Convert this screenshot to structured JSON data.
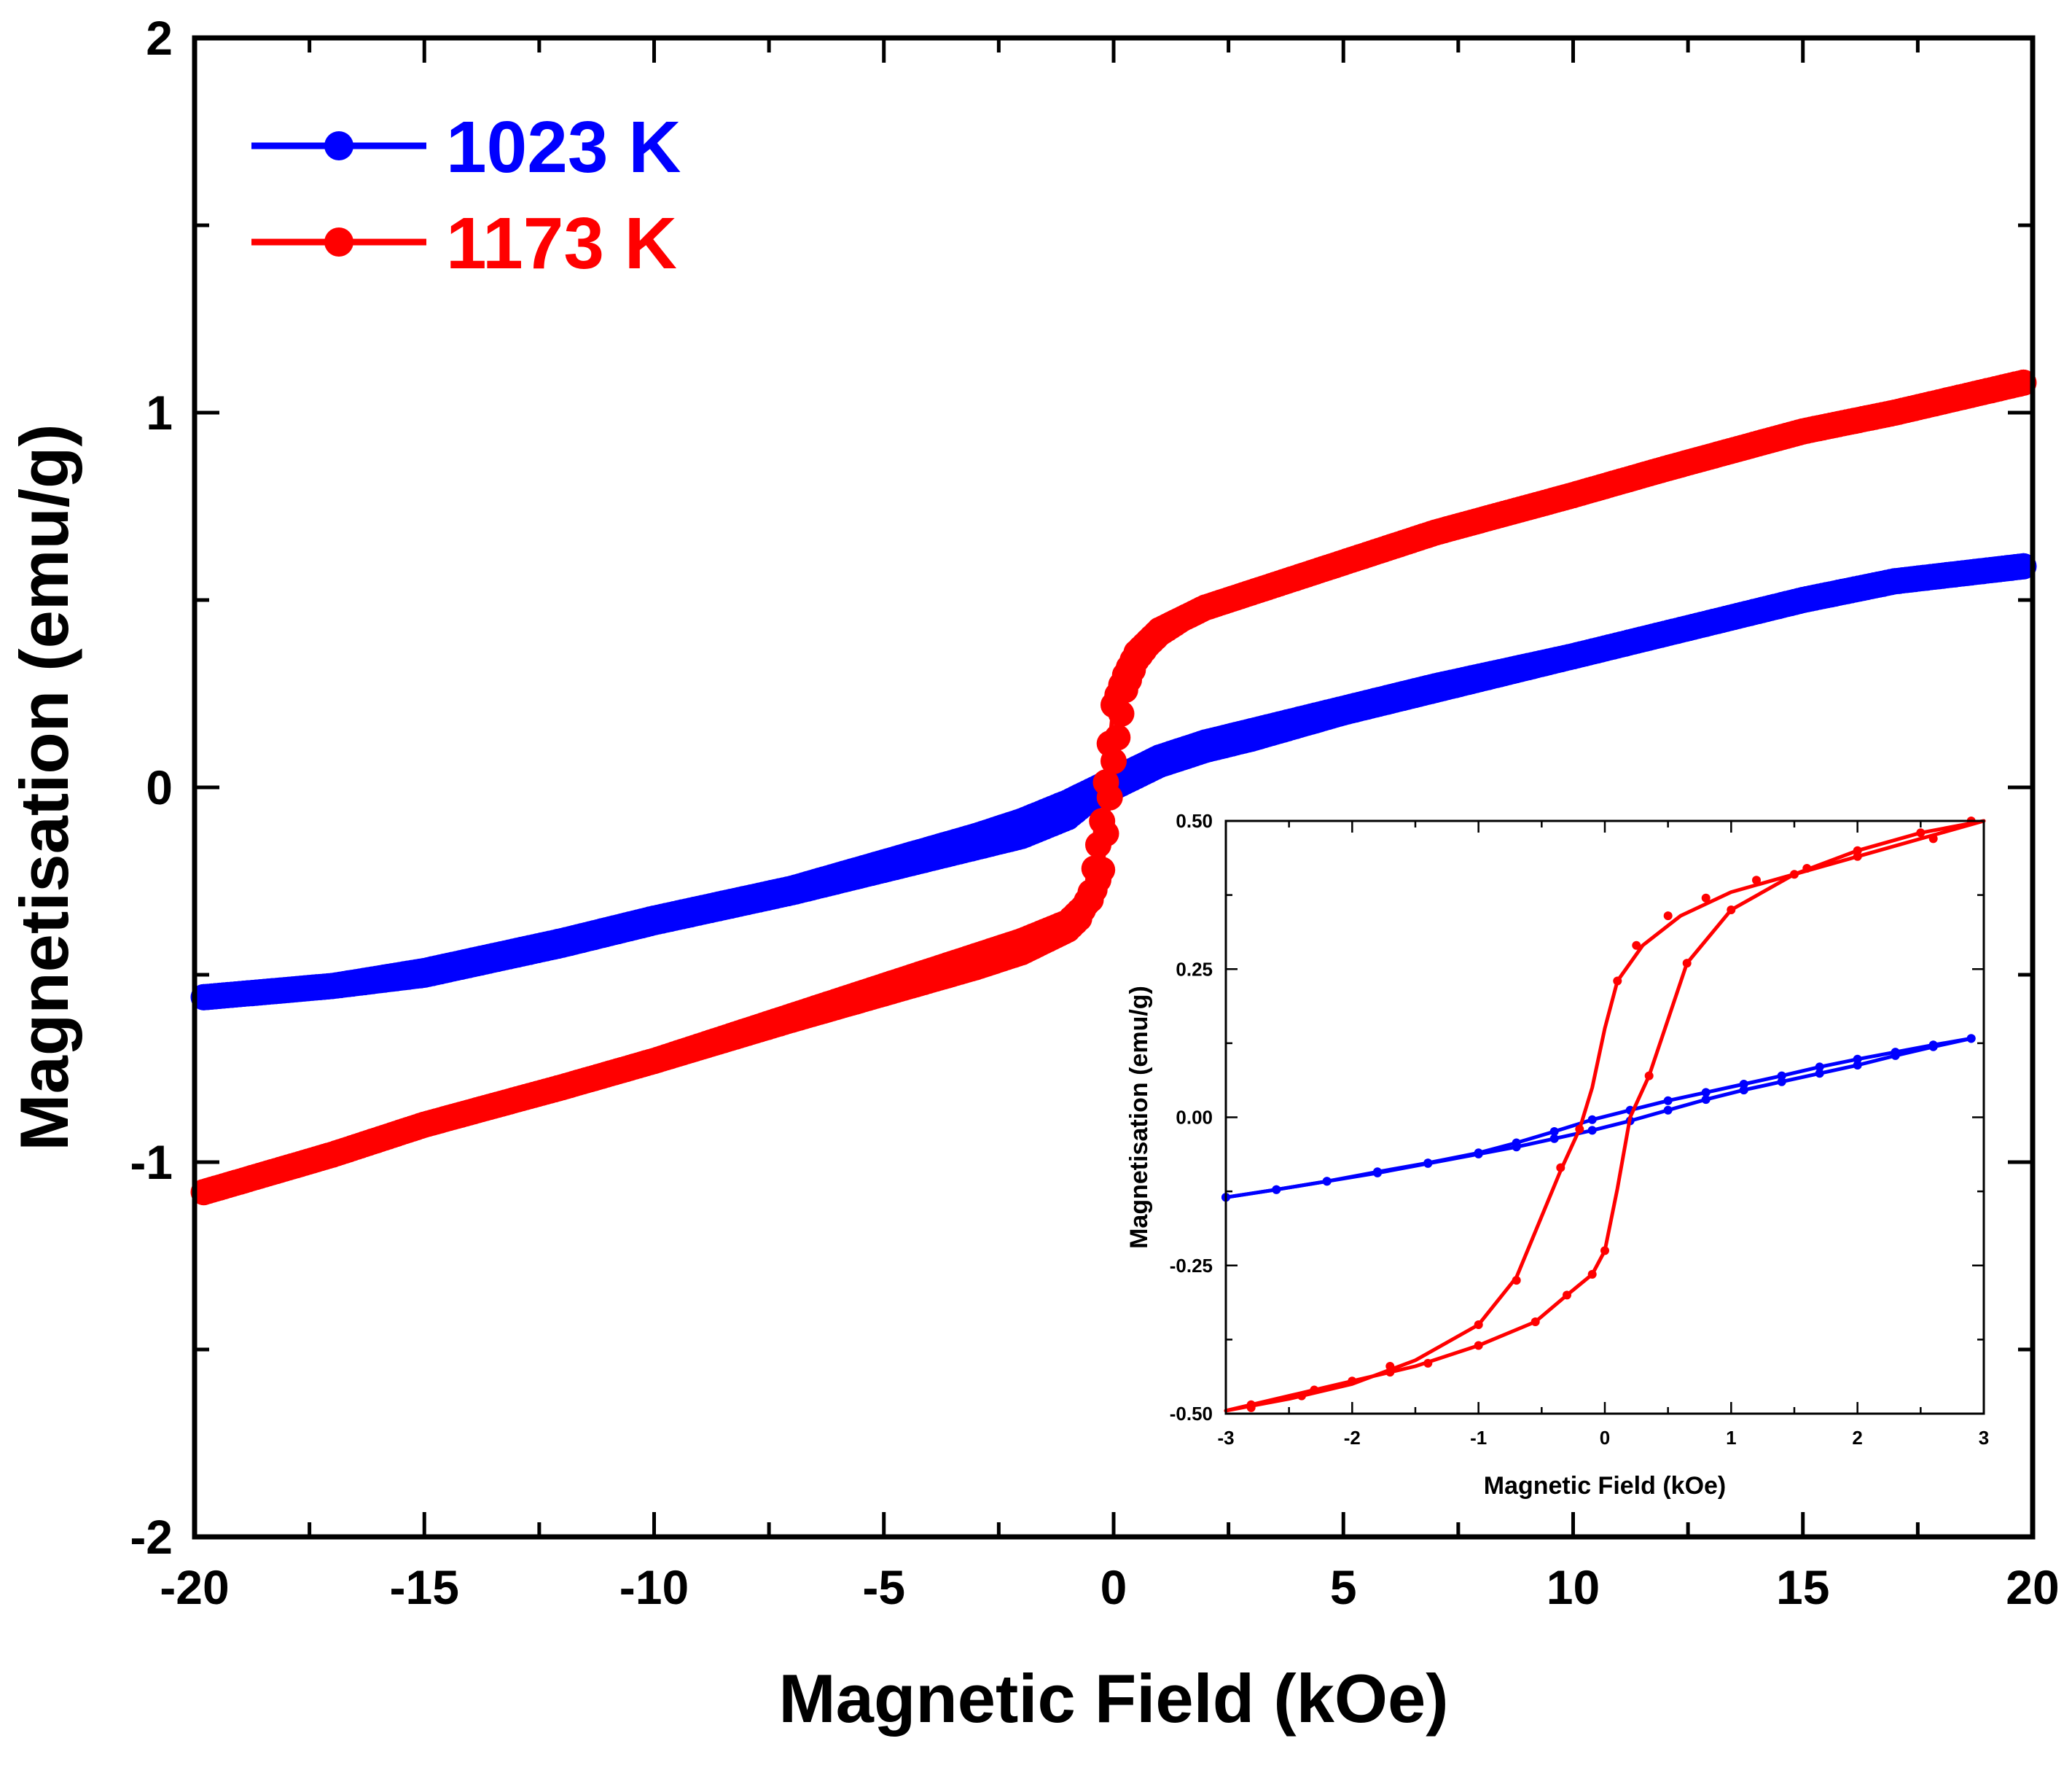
{
  "chart_data": [
    {
      "type": "line",
      "title": "",
      "xlabel": "Magnetic Field (kOe)",
      "ylabel": "Magnetisation (emu/g)",
      "xlim": [
        -20,
        20
      ],
      "ylim": [
        -2,
        2
      ],
      "x_ticks": [
        -20,
        -15,
        -10,
        -5,
        0,
        5,
        10,
        15,
        20
      ],
      "x_tick_labels": [
        "-20",
        "-15",
        "-10",
        "-5",
        "0",
        "5",
        "10",
        "15",
        "20"
      ],
      "y_ticks": [
        -2,
        -1,
        0,
        1,
        2
      ],
      "y_tick_labels": [
        "-2",
        "-1",
        "0",
        "1",
        "2"
      ],
      "grid": false,
      "legend_position": "top-left",
      "series": [
        {
          "name": "1023 K",
          "color": "#0000ff",
          "marker": "circle",
          "branches": [
            {
              "x": [
                -19.8,
                -17,
                -15,
                -12,
                -10,
                -7,
                -5,
                -3,
                -2,
                -1,
                -0.5,
                0,
                0.5,
                1,
                2,
                3,
                5,
                7,
                10,
                12,
                15,
                17,
                19.8
              ],
              "y": [
                -0.56,
                -0.53,
                -0.5,
                -0.42,
                -0.36,
                -0.28,
                -0.22,
                -0.16,
                -0.13,
                -0.08,
                -0.03,
                0.0,
                0.03,
                0.06,
                0.1,
                0.13,
                0.2,
                0.26,
                0.35,
                0.41,
                0.5,
                0.55,
                0.59
              ]
            },
            {
              "x": [
                19.8,
                17,
                15,
                12,
                10,
                7,
                5,
                3,
                2,
                1,
                0.5,
                0,
                -0.5,
                -1,
                -2,
                -3,
                -5,
                -7,
                -10,
                -12,
                -15,
                -17,
                -19.8
              ],
              "y": [
                0.59,
                0.55,
                0.5,
                0.41,
                0.35,
                0.27,
                0.21,
                0.15,
                0.12,
                0.08,
                0.05,
                0.02,
                -0.01,
                -0.04,
                -0.09,
                -0.13,
                -0.2,
                -0.27,
                -0.35,
                -0.41,
                -0.49,
                -0.53,
                -0.56
              ]
            }
          ]
        },
        {
          "name": "1173 K",
          "color": "#ff0000",
          "marker": "circle",
          "branches": [
            {
              "x": [
                -19.8,
                -17,
                -15,
                -12,
                -10,
                -7,
                -5,
                -3,
                -2,
                -1,
                -0.75,
                -0.5,
                -0.25,
                0,
                0.25,
                0.5,
                0.75,
                1,
                1.5,
                2,
                3,
                5,
                7,
                10,
                12,
                15,
                17,
                19.8
              ],
              "y": [
                -1.08,
                -0.98,
                -0.9,
                -0.8,
                -0.73,
                -0.61,
                -0.53,
                -0.45,
                -0.41,
                -0.36,
                -0.33,
                -0.3,
                -0.22,
                0.07,
                0.26,
                0.34,
                0.38,
                0.41,
                0.45,
                0.48,
                0.52,
                0.6,
                0.68,
                0.78,
                0.85,
                0.95,
                1.0,
                1.08
              ]
            },
            {
              "x": [
                19.8,
                17,
                15,
                12,
                10,
                7,
                5,
                3,
                2,
                1,
                0.75,
                0.5,
                0.25,
                0,
                -0.25,
                -0.5,
                -0.75,
                -1,
                -1.5,
                -2,
                -3,
                -5,
                -7,
                -10,
                -12,
                -15,
                -17,
                -19.8
              ],
              "y": [
                1.08,
                1.0,
                0.95,
                0.85,
                0.78,
                0.68,
                0.6,
                0.52,
                0.48,
                0.42,
                0.39,
                0.36,
                0.3,
                0.22,
                -0.09,
                -0.28,
                -0.35,
                -0.38,
                -0.41,
                -0.44,
                -0.48,
                -0.55,
                -0.62,
                -0.73,
                -0.8,
                -0.9,
                -0.98,
                -1.08
              ]
            }
          ]
        }
      ]
    },
    {
      "type": "line",
      "title": "",
      "xlabel": "Magnetic Field (kOe)",
      "ylabel": "Magnetisation (emu/g)",
      "xlim": [
        -3,
        3
      ],
      "ylim": [
        -0.5,
        0.5
      ],
      "x_ticks": [
        -3,
        -2,
        -1,
        0,
        1,
        2,
        3
      ],
      "x_tick_labels": [
        "-3",
        "-2",
        "-1",
        "0",
        "1",
        "2",
        "3"
      ],
      "y_ticks": [
        -0.5,
        -0.25,
        0,
        0.25,
        0.5
      ],
      "y_tick_labels": [
        "-0.50",
        "-0.25",
        "0.00",
        "0.25",
        "0.50"
      ],
      "grid": false,
      "legend_position": "none",
      "series": [
        {
          "name": "1023 K",
          "color": "#0000ff",
          "marker": "circle",
          "branches": [
            {
              "x": [
                -3.0,
                -2.6,
                -2.2,
                -1.8,
                -1.4,
                -1.0,
                -0.7,
                -0.4,
                -0.1,
                0.2,
                0.5,
                0.8,
                1.1,
                1.4,
                1.7,
                2.0,
                2.3,
                2.6,
                2.9
              ],
              "y": [
                -0.135,
                -0.122,
                -0.108,
                -0.094,
                -0.078,
                -0.062,
                -0.05,
                -0.036,
                -0.022,
                -0.006,
                0.012,
                0.03,
                0.046,
                0.06,
                0.074,
                0.088,
                0.104,
                0.119,
                0.133
              ]
            },
            {
              "x": [
                2.9,
                2.6,
                2.3,
                2.0,
                1.7,
                1.4,
                1.1,
                0.8,
                0.5,
                0.2,
                -0.1,
                -0.4,
                -0.7,
                -1.0,
                -1.4,
                -1.8,
                -2.2,
                -2.6,
                -3.0
              ],
              "y": [
                0.133,
                0.122,
                0.11,
                0.098,
                0.085,
                0.07,
                0.056,
                0.042,
                0.028,
                0.012,
                -0.004,
                -0.024,
                -0.043,
                -0.06,
                -0.077,
                -0.092,
                -0.108,
                -0.122,
                -0.135
              ]
            }
          ]
        },
        {
          "name": "1173 K",
          "color": "#ff0000",
          "marker": "circle",
          "branches": [
            {
              "x": [
                -3.0,
                -2.5,
                -2.0,
                -1.5,
                -1.0,
                -0.55,
                -0.3,
                -0.1,
                0.0,
                0.1,
                0.2,
                0.35,
                0.65,
                1.0,
                1.5,
                2.0,
                2.5,
                3.0
              ],
              "y": [
                -0.495,
                -0.47,
                -0.445,
                -0.42,
                -0.385,
                -0.345,
                -0.3,
                -0.265,
                -0.225,
                -0.12,
                0.0,
                0.07,
                0.26,
                0.35,
                0.41,
                0.45,
                0.48,
                0.5
              ],
              "markers_x": [
                -2.8,
                -2.4,
                -2.0,
                -1.7,
                -1.4,
                -1.0,
                -0.55,
                -0.3,
                -0.1,
                0.0,
                0.35,
                0.65,
                1.0,
                1.5,
                2.0,
                2.5,
                2.9
              ],
              "markers_y": [
                -0.49,
                -0.47,
                -0.445,
                -0.43,
                -0.415,
                -0.385,
                -0.345,
                -0.3,
                -0.265,
                -0.225,
                0.07,
                0.26,
                0.35,
                0.41,
                0.45,
                0.48,
                0.5
              ]
            },
            {
              "x": [
                3.0,
                2.5,
                2.0,
                1.5,
                1.0,
                0.6,
                0.3,
                0.1,
                0.0,
                -0.1,
                -0.2,
                -0.35,
                -0.7,
                -1.0,
                -1.5,
                -2.0,
                -2.5,
                -3.0
              ],
              "y": [
                0.5,
                0.47,
                0.44,
                0.41,
                0.38,
                0.34,
                0.29,
                0.23,
                0.15,
                0.05,
                -0.02,
                -0.09,
                -0.27,
                -0.35,
                -0.41,
                -0.45,
                -0.475,
                -0.495
              ],
              "markers_x": [
                2.6,
                2.0,
                1.6,
                1.2,
                0.8,
                0.5,
                0.25,
                0.1,
                -0.2,
                -0.35,
                -0.7,
                -1.0,
                -1.7,
                -2.3,
                -2.8
              ],
              "markers_y": [
                0.47,
                0.44,
                0.42,
                0.4,
                0.37,
                0.34,
                0.29,
                0.23,
                -0.02,
                -0.085,
                -0.275,
                -0.35,
                -0.42,
                -0.46,
                -0.485
              ]
            }
          ]
        }
      ]
    }
  ]
}
